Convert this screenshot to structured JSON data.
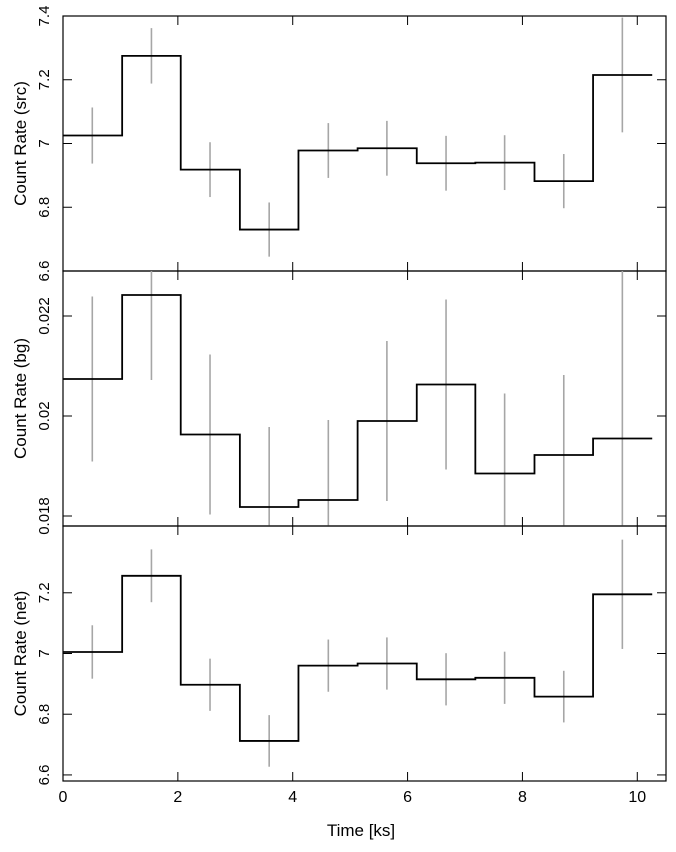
{
  "colors": {
    "line": "#000000",
    "error": "#a6a6a6",
    "axis": "#000000"
  },
  "chart_data": {
    "type": "line",
    "step": "post",
    "x_bin_edges": [
      0.0,
      1.03,
      2.05,
      3.08,
      4.1,
      5.13,
      6.16,
      7.18,
      8.21,
      9.23,
      10.26
    ],
    "x_centers": [
      0.51,
      1.54,
      2.56,
      3.59,
      4.62,
      5.64,
      6.67,
      7.69,
      8.72,
      9.74
    ],
    "xlabel": "Time [ks]",
    "xlim": [
      0,
      10.5
    ],
    "x_ticks": [
      0,
      2,
      4,
      6,
      8,
      10
    ],
    "panels": [
      {
        "ylabel": "Count Rate (src)",
        "ylim": [
          6.6,
          7.4
        ],
        "y_ticks": [
          6.6,
          6.8,
          7,
          7.2,
          7.4
        ],
        "y_tick_labels": [
          "6.6",
          "6.8",
          "7",
          "7.2",
          "7.4"
        ],
        "values": [
          7.025,
          7.275,
          6.918,
          6.73,
          6.978,
          6.985,
          6.938,
          6.94,
          6.882,
          7.215
        ],
        "errors": [
          0.088,
          0.087,
          0.086,
          0.085,
          0.086,
          0.086,
          0.086,
          0.086,
          0.085,
          0.18
        ]
      },
      {
        "ylabel": "Count Rate (bg)",
        "ylim": [
          0.0178,
          0.0229
        ],
        "y_ticks": [
          0.018,
          0.02,
          0.022
        ],
        "y_tick_labels": [
          "0.018",
          "0.02",
          "0.022"
        ],
        "values": [
          0.02074,
          0.02242,
          0.01963,
          0.01818,
          0.01832,
          0.0199,
          0.02063,
          0.01885,
          0.01922,
          0.01955
        ],
        "errors": [
          0.00165,
          0.0017,
          0.0016,
          0.0016,
          0.0016,
          0.0016,
          0.0017,
          0.0016,
          0.0016,
          0.0034
        ]
      },
      {
        "ylabel": "Count Rate (net)",
        "ylim": [
          6.58,
          7.42
        ],
        "y_ticks": [
          6.6,
          6.8,
          7,
          7.2
        ],
        "y_tick_labels": [
          "6.6",
          "6.8",
          "7",
          "7.2"
        ],
        "values": [
          7.005,
          7.256,
          6.897,
          6.712,
          6.96,
          6.967,
          6.915,
          6.92,
          6.858,
          7.195
        ],
        "errors": [
          0.088,
          0.087,
          0.086,
          0.085,
          0.086,
          0.086,
          0.086,
          0.086,
          0.085,
          0.18
        ]
      }
    ]
  }
}
